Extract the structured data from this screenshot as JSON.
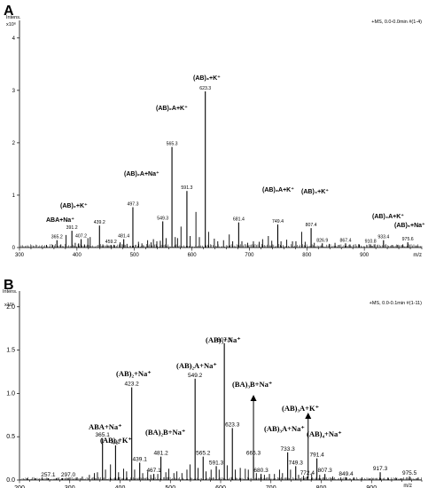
{
  "chart_data": [
    {
      "panel_letter": "A",
      "type": "bar",
      "title": "",
      "header_right": "+MS, 0.0-0.0min #(1-4)",
      "ylabel": "Intens.",
      "y_multiplier": "x10⁶",
      "xlabel": "m/z",
      "xlim": [
        300,
        1000
      ],
      "ylim": [
        0,
        4.2
      ],
      "x_ticks": [
        300,
        400,
        500,
        600,
        700,
        800,
        900
      ],
      "y_ticks": [
        0,
        1,
        2,
        3,
        4
      ],
      "grid": false,
      "labeled_peaks": [
        {
          "mz": 365.2,
          "intensity": 0.14,
          "text": "365.2"
        },
        {
          "mz": 391.2,
          "intensity": 0.32,
          "text": "391.2"
        },
        {
          "mz": 407.2,
          "intensity": 0.16,
          "text": "407.2"
        },
        {
          "mz": 439.2,
          "intensity": 0.42,
          "text": "439.2"
        },
        {
          "mz": 459.2,
          "intensity": 0.05,
          "text": "459.2"
        },
        {
          "mz": 481.4,
          "intensity": 0.16,
          "text": "481.4"
        },
        {
          "mz": 497.3,
          "intensity": 0.77,
          "text": "497.3"
        },
        {
          "mz": 549.3,
          "intensity": 0.5,
          "text": "549.3"
        },
        {
          "mz": 565.3,
          "intensity": 1.92,
          "text": "565.3"
        },
        {
          "mz": 591.3,
          "intensity": 1.08,
          "text": "591.3"
        },
        {
          "mz": 623.3,
          "intensity": 2.98,
          "text": "623.3"
        },
        {
          "mz": 681.4,
          "intensity": 0.48,
          "text": "681.4"
        },
        {
          "mz": 749.4,
          "intensity": 0.44,
          "text": "749.4"
        },
        {
          "mz": 807.4,
          "intensity": 0.37,
          "text": "807.4"
        },
        {
          "mz": 826.9,
          "intensity": 0.08,
          "text": "826.9"
        },
        {
          "mz": 867.4,
          "intensity": 0.08,
          "text": "867.4"
        },
        {
          "mz": 910.8,
          "intensity": 0.06,
          "text": "910.8"
        },
        {
          "mz": 933.4,
          "intensity": 0.14,
          "text": "933.4"
        },
        {
          "mz": 975.6,
          "intensity": 0.1,
          "text": "975.6"
        }
      ],
      "other_peaks": [
        {
          "mz": 347,
          "intensity": 0.05
        },
        {
          "mz": 358,
          "intensity": 0.05
        },
        {
          "mz": 372,
          "intensity": 0.06
        },
        {
          "mz": 381,
          "intensity": 0.24
        },
        {
          "mz": 397,
          "intensity": 0.09
        },
        {
          "mz": 403,
          "intensity": 0.08
        },
        {
          "mz": 413,
          "intensity": 0.06
        },
        {
          "mz": 419,
          "intensity": 0.18
        },
        {
          "mz": 423,
          "intensity": 0.2
        },
        {
          "mz": 445,
          "intensity": 0.06
        },
        {
          "mz": 453,
          "intensity": 0.04
        },
        {
          "mz": 465,
          "intensity": 0.05
        },
        {
          "mz": 475,
          "intensity": 0.1
        },
        {
          "mz": 487,
          "intensity": 0.07
        },
        {
          "mz": 507,
          "intensity": 0.11
        },
        {
          "mz": 513,
          "intensity": 0.08
        },
        {
          "mz": 523,
          "intensity": 0.14
        },
        {
          "mz": 529,
          "intensity": 0.1
        },
        {
          "mz": 533,
          "intensity": 0.16
        },
        {
          "mz": 539,
          "intensity": 0.12
        },
        {
          "mz": 545,
          "intensity": 0.13
        },
        {
          "mz": 555,
          "intensity": 0.18
        },
        {
          "mz": 571,
          "intensity": 0.2
        },
        {
          "mz": 575,
          "intensity": 0.18
        },
        {
          "mz": 581,
          "intensity": 0.4
        },
        {
          "mz": 597,
          "intensity": 0.22
        },
        {
          "mz": 607,
          "intensity": 0.68
        },
        {
          "mz": 613,
          "intensity": 0.2
        },
        {
          "mz": 629,
          "intensity": 0.3
        },
        {
          "mz": 639,
          "intensity": 0.17
        },
        {
          "mz": 645,
          "intensity": 0.12
        },
        {
          "mz": 655,
          "intensity": 0.14
        },
        {
          "mz": 665,
          "intensity": 0.25
        },
        {
          "mz": 671,
          "intensity": 0.12
        },
        {
          "mz": 687,
          "intensity": 0.12
        },
        {
          "mz": 697,
          "intensity": 0.09
        },
        {
          "mz": 707,
          "intensity": 0.12
        },
        {
          "mz": 717,
          "intensity": 0.11
        },
        {
          "mz": 723,
          "intensity": 0.16
        },
        {
          "mz": 733,
          "intensity": 0.22
        },
        {
          "mz": 739,
          "intensity": 0.13
        },
        {
          "mz": 755,
          "intensity": 0.12
        },
        {
          "mz": 765,
          "intensity": 0.15
        },
        {
          "mz": 775,
          "intensity": 0.12
        },
        {
          "mz": 781,
          "intensity": 0.12
        },
        {
          "mz": 791,
          "intensity": 0.3
        },
        {
          "mz": 797,
          "intensity": 0.11
        },
        {
          "mz": 813,
          "intensity": 0.09
        },
        {
          "mz": 839,
          "intensity": 0.07
        },
        {
          "mz": 849,
          "intensity": 0.09
        },
        {
          "mz": 855,
          "intensity": 0.05
        },
        {
          "mz": 875,
          "intensity": 0.06
        },
        {
          "mz": 891,
          "intensity": 0.06
        },
        {
          "mz": 917,
          "intensity": 0.06
        },
        {
          "mz": 949,
          "intensity": 0.05
        },
        {
          "mz": 958,
          "intensity": 0.05
        },
        {
          "mz": 967,
          "intensity": 0.06
        },
        {
          "mz": 991,
          "intensity": 0.04
        }
      ],
      "annotations": [
        {
          "text": "ABA+Na⁺",
          "mz": 365.2
        },
        {
          "text": "(AB)₂+K⁺",
          "mz": 391.2
        },
        {
          "text": "(AB)₂A+Na⁺",
          "mz": 549.3
        },
        {
          "text": "(AB)₂A+K⁺",
          "mz": 565.3
        },
        {
          "text": "(AB)₃+K⁺",
          "mz": 623.3
        },
        {
          "text": "(AB)₃A+K⁺",
          "mz": 749.4
        },
        {
          "text": "(AB)₄+K⁺",
          "mz": 807.4
        },
        {
          "text": "(AB)₄A+K⁺",
          "mz": 933.4
        },
        {
          "text": "(AB)₅+Na⁺",
          "mz": 975.6
        }
      ]
    },
    {
      "panel_letter": "B",
      "type": "bar",
      "title": "",
      "header_right": "+MS, 0.0-0.1min #(1-11)",
      "ylabel": "Intens.",
      "y_multiplier": "x10⁵",
      "xlabel": "m/z",
      "xlim": [
        200,
        1000
      ],
      "ylim": [
        0,
        2.1
      ],
      "x_ticks": [
        200,
        300,
        400,
        500,
        600,
        700,
        800,
        900
      ],
      "y_ticks": [
        0.0,
        0.5,
        1.0,
        1.5,
        2.0
      ],
      "y_tick_labels": [
        "0.0",
        "0.5",
        "1.0",
        "1.5",
        "2.0"
      ],
      "grid": false,
      "labeled_peaks": [
        {
          "mz": 257.1,
          "intensity": 0.02,
          "text": "257.1"
        },
        {
          "mz": 297.0,
          "intensity": 0.02,
          "text": "297.0"
        },
        {
          "mz": 365.1,
          "intensity": 0.48,
          "text": "365.1"
        },
        {
          "mz": 391.0,
          "intensity": 0.4,
          "text": "391"
        },
        {
          "mz": 423.2,
          "intensity": 1.07,
          "text": "423.2"
        },
        {
          "mz": 439.1,
          "intensity": 0.2,
          "text": "439.1"
        },
        {
          "mz": 467.1,
          "intensity": 0.07,
          "text": "467.1"
        },
        {
          "mz": 481.2,
          "intensity": 0.27,
          "text": "481.2"
        },
        {
          "mz": 549.2,
          "intensity": 1.17,
          "text": "549.2"
        },
        {
          "mz": 565.2,
          "intensity": 0.27,
          "text": "565.2"
        },
        {
          "mz": 591.3,
          "intensity": 0.16,
          "text": "591.3"
        },
        {
          "mz": 607.3,
          "intensity": 1.58,
          "text": "607.3"
        },
        {
          "mz": 623.3,
          "intensity": 0.6,
          "text": "623.3"
        },
        {
          "mz": 665.3,
          "intensity": 0.27,
          "text": "665.3"
        },
        {
          "mz": 680.3,
          "intensity": 0.07,
          "text": "680.3"
        },
        {
          "mz": 733.3,
          "intensity": 0.32,
          "text": "733.3"
        },
        {
          "mz": 749.3,
          "intensity": 0.16,
          "text": "749.3"
        },
        {
          "mz": 772.4,
          "intensity": 0.04,
          "text": "772.4"
        },
        {
          "mz": 791.4,
          "intensity": 0.25,
          "text": "791.4"
        },
        {
          "mz": 807.3,
          "intensity": 0.07,
          "text": "807.3"
        },
        {
          "mz": 849.4,
          "intensity": 0.03,
          "text": "849.4"
        },
        {
          "mz": 917.3,
          "intensity": 0.09,
          "text": "917.3"
        },
        {
          "mz": 975.5,
          "intensity": 0.04,
          "text": "975.5"
        }
      ],
      "other_peaks": [
        {
          "mz": 215,
          "intensity": 0.02
        },
        {
          "mz": 231,
          "intensity": 0.02
        },
        {
          "mz": 245,
          "intensity": 0.03
        },
        {
          "mz": 273,
          "intensity": 0.02
        },
        {
          "mz": 285,
          "intensity": 0.02
        },
        {
          "mz": 313,
          "intensity": 0.03
        },
        {
          "mz": 325,
          "intensity": 0.04
        },
        {
          "mz": 339,
          "intensity": 0.06
        },
        {
          "mz": 349,
          "intensity": 0.08
        },
        {
          "mz": 355,
          "intensity": 0.09
        },
        {
          "mz": 371,
          "intensity": 0.12
        },
        {
          "mz": 381,
          "intensity": 0.18
        },
        {
          "mz": 397,
          "intensity": 0.09
        },
        {
          "mz": 407,
          "intensity": 0.13
        },
        {
          "mz": 413,
          "intensity": 0.1
        },
        {
          "mz": 429,
          "intensity": 0.12
        },
        {
          "mz": 445,
          "intensity": 0.08
        },
        {
          "mz": 455,
          "intensity": 0.1
        },
        {
          "mz": 461,
          "intensity": 0.06
        },
        {
          "mz": 475,
          "intensity": 0.07
        },
        {
          "mz": 491,
          "intensity": 0.09
        },
        {
          "mz": 497,
          "intensity": 0.13
        },
        {
          "mz": 507,
          "intensity": 0.08
        },
        {
          "mz": 513,
          "intensity": 0.1
        },
        {
          "mz": 523,
          "intensity": 0.08
        },
        {
          "mz": 533,
          "intensity": 0.12
        },
        {
          "mz": 539,
          "intensity": 0.18
        },
        {
          "mz": 555,
          "intensity": 0.14
        },
        {
          "mz": 571,
          "intensity": 0.1
        },
        {
          "mz": 581,
          "intensity": 0.12
        },
        {
          "mz": 597,
          "intensity": 0.12
        },
        {
          "mz": 613,
          "intensity": 0.17
        },
        {
          "mz": 629,
          "intensity": 0.12
        },
        {
          "mz": 639,
          "intensity": 0.14
        },
        {
          "mz": 649,
          "intensity": 0.13
        },
        {
          "mz": 655,
          "intensity": 0.12
        },
        {
          "mz": 671,
          "intensity": 0.08
        },
        {
          "mz": 687,
          "intensity": 0.06
        },
        {
          "mz": 697,
          "intensity": 0.07
        },
        {
          "mz": 707,
          "intensity": 0.07
        },
        {
          "mz": 717,
          "intensity": 0.12
        },
        {
          "mz": 723,
          "intensity": 0.08
        },
        {
          "mz": 739,
          "intensity": 0.12
        },
        {
          "mz": 755,
          "intensity": 0.06
        },
        {
          "mz": 765,
          "intensity": 0.05
        },
        {
          "mz": 781,
          "intensity": 0.07
        },
        {
          "mz": 797,
          "intensity": 0.06
        },
        {
          "mz": 823,
          "intensity": 0.04
        },
        {
          "mz": 839,
          "intensity": 0.03
        },
        {
          "mz": 865,
          "intensity": 0.03
        },
        {
          "mz": 881,
          "intensity": 0.03
        },
        {
          "mz": 897,
          "intensity": 0.02
        },
        {
          "mz": 933,
          "intensity": 0.03
        },
        {
          "mz": 949,
          "intensity": 0.02
        },
        {
          "mz": 959,
          "intensity": 0.02
        },
        {
          "mz": 990,
          "intensity": 0.02
        }
      ],
      "annotations": [
        {
          "text": "ABA+Na⁺",
          "mz": 365.1
        },
        {
          "text": "(AB)₂+K⁺",
          "mz": 391.0
        },
        {
          "text": "(AB)₂+Na⁺",
          "mz": 423.2
        },
        {
          "text": "(BA)₂B+Na⁺",
          "mz": 481.2
        },
        {
          "text": "(AB)₂A+Na⁺",
          "mz": 549.2
        },
        {
          "text": "(AB)₃+Na⁺",
          "mz": 607.3
        },
        {
          "text": "(BA)₃B+Na⁺",
          "mz": 665.3
        },
        {
          "text": "(AB)₃A+Na⁺",
          "mz": 733.3
        },
        {
          "text": "(AB)₃A+K⁺",
          "mz": 774.0
        },
        {
          "text": "(AB)₄+Na⁺",
          "mz": 791.4
        }
      ]
    }
  ]
}
